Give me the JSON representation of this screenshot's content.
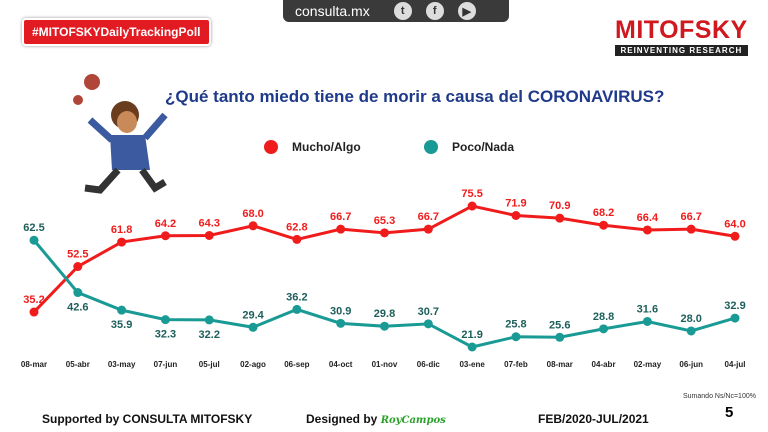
{
  "header": {
    "badge": "#MITOFSKYDailyTrackingPoll",
    "site": "consulta.mx",
    "social": [
      "twitter-icon",
      "facebook-icon",
      "youtube-icon"
    ],
    "logo": "MITOFSKY",
    "logo_tagline": "REINVENTING RESEARCH"
  },
  "chart_data": {
    "type": "line",
    "title": "¿Qué tanto miedo tiene de morir a causa del CORONAVIRUS?",
    "categories": [
      "08-mar",
      "05-abr",
      "03-may",
      "07-jun",
      "05-jul",
      "02-ago",
      "06-sep",
      "04-oct",
      "01-nov",
      "06-dic",
      "03-ene",
      "07-feb",
      "08-mar",
      "04-abr",
      "02-may",
      "06-jun",
      "04-jul"
    ],
    "series": [
      {
        "name": "Mucho/Algo",
        "color": "#f01c1c",
        "values": [
          35.2,
          52.5,
          61.8,
          64.2,
          64.3,
          68.0,
          62.8,
          66.7,
          65.3,
          66.7,
          75.5,
          71.9,
          70.9,
          68.2,
          66.4,
          66.7,
          64.0
        ]
      },
      {
        "name": "Poco/Nada",
        "color": "#1a9a94",
        "values": [
          62.5,
          42.6,
          35.9,
          32.3,
          32.2,
          29.4,
          36.2,
          30.9,
          29.8,
          30.7,
          21.9,
          25.8,
          25.6,
          28.8,
          31.6,
          28.0,
          32.9
        ]
      }
    ],
    "legend": "top-center"
  },
  "footer": {
    "supported": "Supported by  CONSULTA  MITOFSKY",
    "designed": "Designed by",
    "designer": "RoyCampos",
    "period": "FEB/2020-JUL/2021",
    "note": "Sumando Ns/Nc=100%",
    "page": "5"
  }
}
